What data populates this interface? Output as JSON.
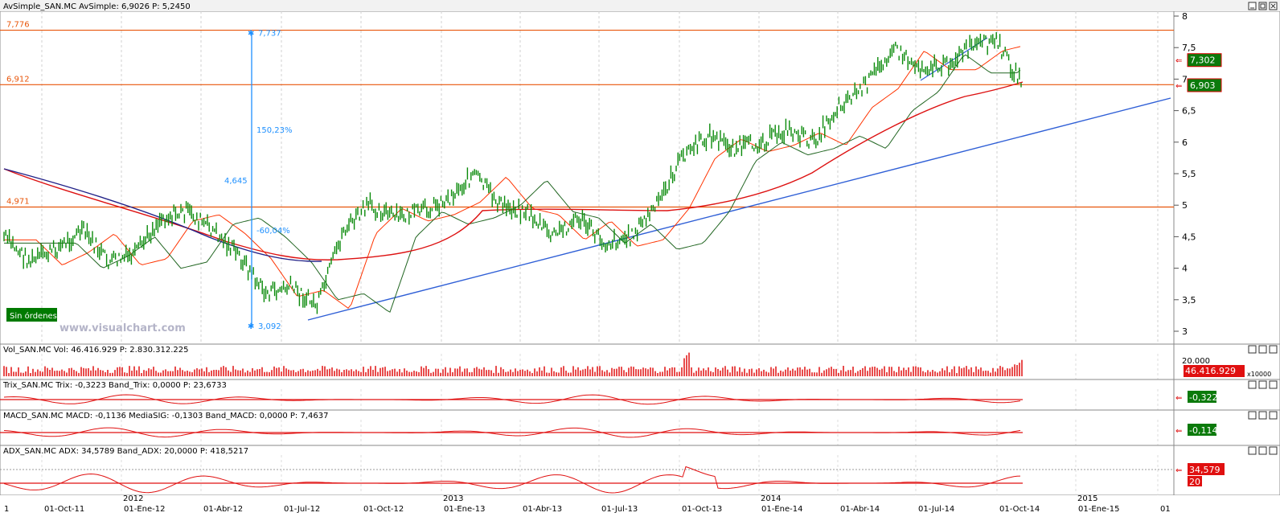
{
  "main_panel": {
    "header": "AvSimple_SAN.MC  AvSimple: 6,9026  P: 5,2450",
    "h_lines": [
      {
        "label": "7,776",
        "value": 7.776
      },
      {
        "label": "6,912",
        "value": 6.912
      },
      {
        "label": "4,971",
        "value": 4.971
      }
    ],
    "measure": {
      "top_label": "7,737",
      "bottom_label": "3,092",
      "diff_label": "4,645",
      "up_pct": "150,23%",
      "down_pct": "-60,04%",
      "top_value": 7.737,
      "bottom_value": 3.092
    },
    "price_tags": [
      {
        "label": "7,302",
        "value": 7.302
      },
      {
        "label": "6,903",
        "value": 6.903
      }
    ],
    "orders_badge": "Sin órdenes",
    "watermark": "www.visualchart.com"
  },
  "panels": [
    {
      "id": "vol",
      "header": "Vol_SAN.MC  Vol: 46.416.929  P: 2.830.312.225",
      "tick": "20.000",
      "unit": "x10000",
      "tag": "46.416.929"
    },
    {
      "id": "trix",
      "header": "Trix_SAN.MC  Trix: -0,3223  Band_Trix: 0,0000  P: 23,6733",
      "tag": "-0,322"
    },
    {
      "id": "macd",
      "header": "MACD_SAN.MC  MACD: -0,1136  MediaSIG: -0,1303  Band_MACD: 0,0000  P: 7,4637",
      "tag": "-0,114"
    },
    {
      "id": "adx",
      "header": "ADX_SAN.MC  ADX:  34,5789  Band_ADX:  20,0000  P:  418,5217",
      "tag": "34,579",
      "tag2": "20"
    }
  ],
  "x_axis": {
    "labels": [
      "1",
      "01-Oct-11",
      "01-Ene-12",
      "01-Abr-12",
      "01-Jul-12",
      "01-Oct-12",
      "01-Ene-13",
      "01-Abr-13",
      "01-Jul-13",
      "01-Oct-13",
      "01-Ene-14",
      "01-Abr-14",
      "01-Jul-14",
      "01-Oct-14",
      "01-Ene-15",
      "01"
    ],
    "years": [
      "2012",
      "2013",
      "2014",
      "2015"
    ]
  },
  "chart_data": {
    "type": "candlestick",
    "y_ticks": [
      "3",
      "3,5",
      "4",
      "4,5",
      "5",
      "5,5",
      "6",
      "6,5",
      "7",
      "7,5",
      "8"
    ],
    "ylim": [
      2.9,
      8.05
    ],
    "approx_close": {
      "dates": [
        "2011-07",
        "2011-08",
        "2011-09",
        "2011-10",
        "2011-11",
        "2011-12",
        "2012-01",
        "2012-02",
        "2012-03",
        "2012-04",
        "2012-05",
        "2012-06",
        "2012-07",
        "2012-08",
        "2012-09",
        "2012-10",
        "2012-11",
        "2012-12",
        "2013-01",
        "2013-02",
        "2013-03",
        "2013-04",
        "2013-05",
        "2013-06",
        "2013-07",
        "2013-08",
        "2013-09",
        "2013-10",
        "2013-11",
        "2013-12",
        "2014-01",
        "2014-02",
        "2014-03",
        "2014-04",
        "2014-05",
        "2014-06",
        "2014-07",
        "2014-08",
        "2014-09",
        "2014-10"
      ],
      "values": [
        4.5,
        4.1,
        4.3,
        4.6,
        4.1,
        4.2,
        4.8,
        4.9,
        4.6,
        4.2,
        3.6,
        3.7,
        3.4,
        4.6,
        5.0,
        4.8,
        4.9,
        5.1,
        5.5,
        5.0,
        4.9,
        4.5,
        4.8,
        4.4,
        4.5,
        5.0,
        5.8,
        6.1,
        5.9,
        6.0,
        6.2,
        6.0,
        6.6,
        6.9,
        7.5,
        7.2,
        7.2,
        7.5,
        7.6,
        6.9
      ]
    }
  }
}
